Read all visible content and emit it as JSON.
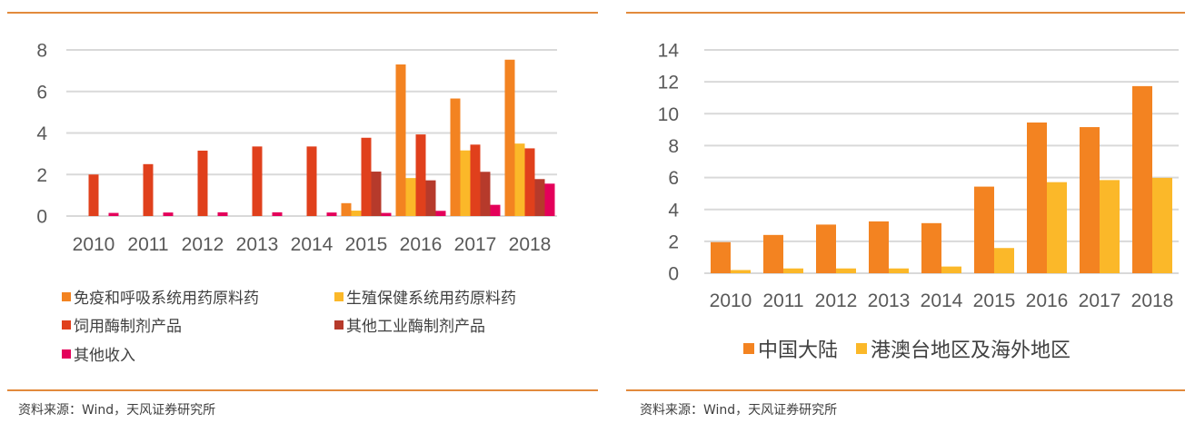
{
  "left_panel": {
    "source": "资料来源：Wind，天风证券研究所",
    "legend": [
      {
        "label": "免疫和呼吸系统用药原料药",
        "color": "#F38321"
      },
      {
        "label": "生殖保健系统用药原料药",
        "color": "#FBB829"
      },
      {
        "label": "饲用酶制剂产品",
        "color": "#E0401C"
      },
      {
        "label": "其他工业酶制剂产品",
        "color": "#B63A2B"
      },
      {
        "label": "其他收入",
        "color": "#E4005A"
      }
    ]
  },
  "right_panel": {
    "source": "资料来源：Wind，天风证券研究所",
    "legend": [
      {
        "label": "中国大陆",
        "color": "#F38321"
      },
      {
        "label": "港澳台地区及海外地区",
        "color": "#FBB829"
      }
    ]
  },
  "chart_data": [
    {
      "type": "bar",
      "title": "",
      "xlabel": "",
      "ylabel": "",
      "ylim": [
        0,
        8
      ],
      "yticks": [
        0,
        2,
        4,
        6,
        8
      ],
      "grid": true,
      "legend_position": "bottom",
      "categories": [
        "2010",
        "2011",
        "2012",
        "2013",
        "2014",
        "2015",
        "2016",
        "2017",
        "2018"
      ],
      "series": [
        {
          "name": "免疫和呼吸系统用药原料药",
          "color": "#F38321",
          "values": [
            0,
            0,
            0,
            0,
            0,
            0.62,
            7.3,
            5.66,
            7.53
          ]
        },
        {
          "name": "生殖保健系统用药原料药",
          "color": "#FBB829",
          "values": [
            0,
            0,
            0,
            0,
            0,
            0.26,
            1.83,
            3.16,
            3.49
          ]
        },
        {
          "name": "饲用酶制剂产品",
          "color": "#E0401C",
          "values": [
            2.0,
            2.5,
            3.15,
            3.35,
            3.35,
            3.77,
            3.93,
            3.44,
            3.26
          ]
        },
        {
          "name": "其他工业酶制剂产品",
          "color": "#B63A2B",
          "values": [
            0,
            0,
            0,
            0,
            0,
            2.14,
            1.72,
            2.13,
            1.78
          ]
        },
        {
          "name": "其他收入",
          "color": "#E4005A",
          "values": [
            0.15,
            0.17,
            0.18,
            0.18,
            0.17,
            0.15,
            0.25,
            0.54,
            1.56
          ]
        }
      ]
    },
    {
      "type": "bar",
      "title": "",
      "xlabel": "",
      "ylabel": "",
      "ylim": [
        0,
        14
      ],
      "yticks": [
        0,
        2,
        4,
        6,
        8,
        10,
        12,
        14
      ],
      "grid": true,
      "legend_position": "bottom",
      "categories": [
        "2010",
        "2011",
        "2012",
        "2013",
        "2014",
        "2015",
        "2016",
        "2017",
        "2018"
      ],
      "series": [
        {
          "name": "中国大陆",
          "color": "#F38321",
          "values": [
            1.95,
            2.4,
            3.05,
            3.25,
            3.14,
            5.43,
            9.45,
            9.16,
            11.73
          ]
        },
        {
          "name": "港澳台地区及海外地区",
          "color": "#FBB829",
          "values": [
            0.2,
            0.3,
            0.3,
            0.3,
            0.42,
            1.58,
            5.71,
            5.84,
            5.98
          ]
        }
      ]
    }
  ]
}
